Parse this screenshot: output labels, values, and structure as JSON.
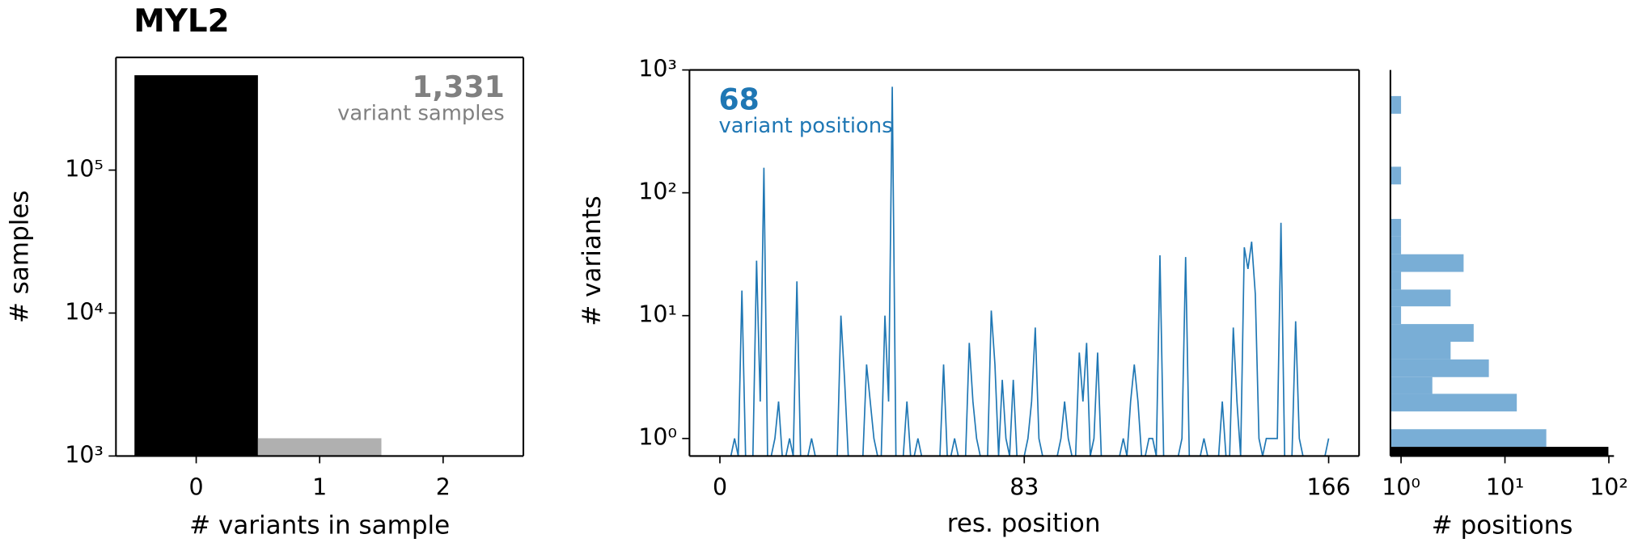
{
  "chart_data": [
    {
      "type": "bar",
      "title": "MYL2",
      "x": [
        0,
        1
      ],
      "values": [
        461000,
        1331
      ],
      "colors": [
        "#000000",
        "#b0b0b0"
      ],
      "xlim": [
        -0.65,
        2.65
      ],
      "xticks": [
        0,
        1,
        2
      ],
      "ylim": [
        1000,
        614000
      ],
      "yscale": "log",
      "yticks": [
        {
          "value": 1000,
          "label": "10³"
        },
        {
          "value": 10000,
          "label": "10⁴"
        },
        {
          "value": 100000,
          "label": "10⁵"
        }
      ],
      "xlabel": "# variants in sample",
      "ylabel": "# samples",
      "annotation": {
        "value": "1,331",
        "text": "variant samples",
        "color": "#808080"
      }
    },
    {
      "type": "line",
      "color": "#1f77b4",
      "x": [
        0,
        1,
        2,
        3,
        4,
        5,
        6,
        7,
        8,
        9,
        10,
        11,
        12,
        13,
        14,
        15,
        16,
        17,
        18,
        19,
        20,
        21,
        22,
        23,
        24,
        25,
        26,
        27,
        28,
        29,
        30,
        31,
        32,
        33,
        34,
        35,
        36,
        37,
        38,
        39,
        40,
        41,
        42,
        43,
        44,
        45,
        46,
        47,
        48,
        49,
        50,
        51,
        52,
        53,
        54,
        55,
        56,
        57,
        58,
        59,
        60,
        61,
        62,
        63,
        64,
        65,
        66,
        67,
        68,
        69,
        70,
        71,
        72,
        73,
        74,
        75,
        76,
        77,
        78,
        79,
        80,
        81,
        82,
        83,
        84,
        85,
        86,
        87,
        88,
        89,
        90,
        91,
        92,
        93,
        94,
        95,
        96,
        97,
        98,
        99,
        100,
        101,
        102,
        103,
        104,
        105,
        106,
        107,
        108,
        109,
        110,
        111,
        112,
        113,
        114,
        115,
        116,
        117,
        118,
        119,
        120,
        121,
        122,
        123,
        124,
        125,
        126,
        127,
        128,
        129,
        130,
        131,
        132,
        133,
        134,
        135,
        136,
        137,
        138,
        139,
        140,
        141,
        142,
        143,
        144,
        145,
        146,
        147,
        148,
        149,
        150,
        151,
        152,
        153,
        154,
        155,
        156,
        157,
        158,
        159,
        160,
        161,
        162,
        163,
        164,
        165,
        166
      ],
      "values": [
        0,
        0,
        0,
        0,
        1,
        0,
        16,
        0,
        0,
        0,
        28,
        2,
        160,
        0,
        0,
        1,
        2,
        0,
        0,
        1,
        0,
        19,
        0,
        0,
        0,
        1,
        0,
        0,
        0,
        0,
        0,
        0,
        0,
        10,
        3,
        0,
        0,
        0,
        0,
        0,
        4,
        2,
        1,
        0,
        0,
        10,
        2,
        730,
        0,
        0,
        0,
        2,
        0,
        0,
        1,
        0,
        0,
        0,
        0,
        0,
        0,
        4,
        0,
        0,
        1,
        0,
        0,
        0,
        6,
        2,
        1,
        0,
        0,
        0,
        11,
        4,
        0,
        3,
        1,
        0,
        3,
        0,
        0,
        0,
        1,
        2,
        8,
        1,
        0,
        0,
        0,
        0,
        0,
        1,
        2,
        1,
        0,
        0,
        5,
        2,
        6,
        0,
        1,
        5,
        0,
        0,
        0,
        0,
        0,
        0,
        1,
        0,
        2,
        4,
        2,
        0,
        0,
        1,
        1,
        0,
        31,
        0,
        0,
        0,
        0,
        0,
        1,
        30,
        0,
        0,
        0,
        0,
        1,
        0,
        0,
        0,
        0,
        2,
        0,
        0,
        8,
        2,
        0,
        36,
        24,
        40,
        15,
        1,
        0,
        1,
        1,
        1,
        1,
        57,
        0,
        0,
        0,
        9,
        1,
        0,
        0,
        0,
        0,
        0,
        0,
        0,
        1
      ],
      "xlim": [
        -8.3,
        174.3
      ],
      "xticks": [
        0,
        83,
        166
      ],
      "ylim": [
        0.72,
        1000
      ],
      "yscale": "log",
      "yticks": [
        {
          "value": 1,
          "label": "10⁰"
        },
        {
          "value": 10,
          "label": "10¹"
        },
        {
          "value": 100,
          "label": "10²"
        },
        {
          "value": 1000,
          "label": "10³"
        }
      ],
      "xlabel": "res. position",
      "ylabel": "# variants",
      "annotation": {
        "value": "68",
        "text": "variant positions",
        "color": "#1f77b4"
      }
    },
    {
      "type": "histogram",
      "orientation": "horizontal",
      "color": "#79aed6",
      "bins": [
        0.855,
        1.19,
        1.66,
        2.31,
        3.16,
        4.4,
        6.13,
        8.54,
        11.9,
        16.3,
        22.7,
        31.6,
        44,
        61.3,
        84.2,
        117,
        163,
        227,
        316,
        440,
        613
      ],
      "values": [
        25,
        0,
        13,
        2,
        7,
        3,
        5,
        1,
        3,
        1,
        4,
        1,
        1,
        0,
        0,
        1,
        0,
        0,
        0,
        1
      ],
      "zero_positions": 99,
      "zero_color": "#000000",
      "ylim": [
        0.72,
        1000
      ],
      "yscale": "log",
      "xlim": [
        0.79,
        112
      ],
      "xscale": "log",
      "xticks": [
        {
          "value": 1,
          "label": "10⁰"
        },
        {
          "value": 10,
          "label": "10¹"
        },
        {
          "value": 100,
          "label": "10²"
        }
      ],
      "xlabel": "# positions",
      "spines": [
        "left",
        "bottom"
      ]
    }
  ]
}
